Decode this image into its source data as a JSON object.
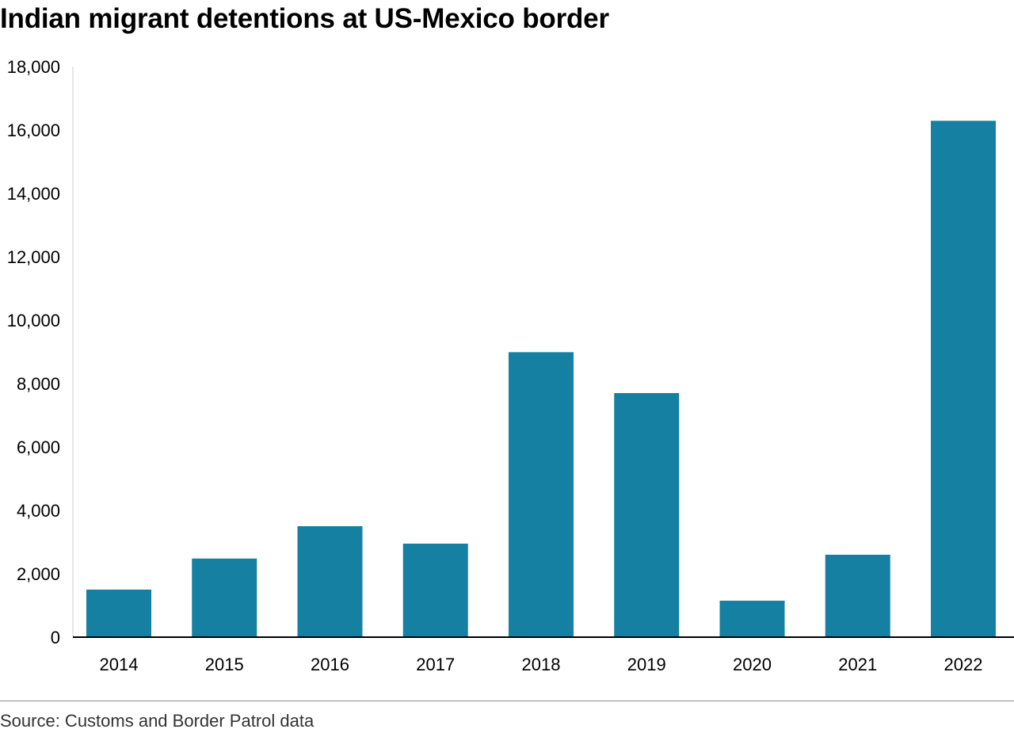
{
  "chart_data": {
    "type": "bar",
    "title": "Indian migrant detentions at US-Mexico border",
    "xlabel": "",
    "ylabel": "",
    "categories": [
      "2014",
      "2015",
      "2016",
      "2017",
      "2018",
      "2019",
      "2020",
      "2021",
      "2022"
    ],
    "values": [
      1500,
      2480,
      3500,
      2950,
      8990,
      7700,
      1150,
      2600,
      16290
    ],
    "ylim": [
      0,
      18000
    ],
    "yticks": [
      0,
      2000,
      4000,
      6000,
      8000,
      10000,
      12000,
      14000,
      16000,
      18000
    ],
    "ytick_labels": [
      "0",
      "2,000",
      "4,000",
      "6,000",
      "8,000",
      "10,000",
      "12,000",
      "14,000",
      "16,000",
      "18,000"
    ],
    "grid": false,
    "legend": "none",
    "bar_color": "#1580a1",
    "source": "Source: Customs and Border Patrol data"
  }
}
